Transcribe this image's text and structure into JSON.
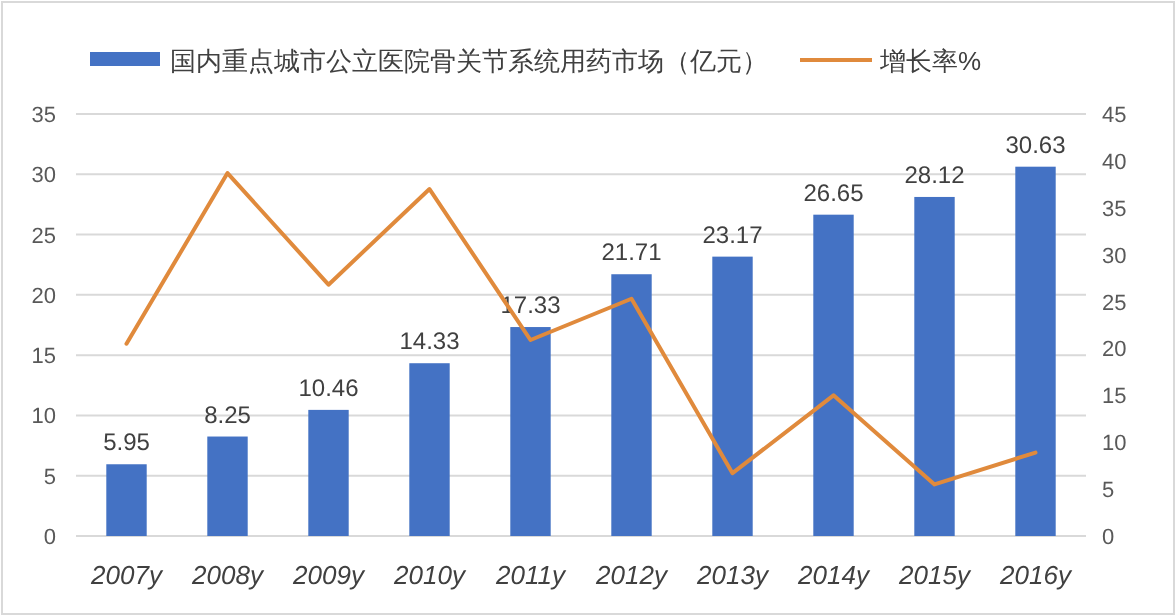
{
  "chart_data": {
    "type": "bar",
    "categories": [
      "2007y",
      "2008y",
      "2009y",
      "2010y",
      "2011y",
      "2012y",
      "2013y",
      "2014y",
      "2015y",
      "2016y"
    ],
    "series": [
      {
        "name": "国内重点城市公立医院骨关节系统用药市场（亿元）",
        "color": "#4472c4",
        "values": [
          5.95,
          8.25,
          10.46,
          14.33,
          17.33,
          21.71,
          23.17,
          26.65,
          28.12,
          30.63
        ],
        "value_labels": [
          "5.95",
          "8.25",
          "10.46",
          "14.33",
          "17.33",
          "21.71",
          "23.17",
          "26.65",
          "28.12",
          "30.63"
        ]
      },
      {
        "name": "增长率%",
        "type": "line",
        "axis": "y2",
        "color": "#e08a3c",
        "values": [
          20.5,
          38.7,
          26.8,
          37.0,
          20.9,
          25.3,
          6.7,
          15.0,
          5.5,
          8.9
        ]
      }
    ],
    "ylim": [
      0,
      35
    ],
    "yticks": [
      0,
      5,
      10,
      15,
      20,
      25,
      30,
      35
    ],
    "y2lim": [
      0,
      45
    ],
    "y2ticks": [
      0,
      5,
      10,
      15,
      20,
      25,
      30,
      35,
      40,
      45
    ],
    "grid": "y",
    "legend": "top",
    "marker": "none"
  }
}
